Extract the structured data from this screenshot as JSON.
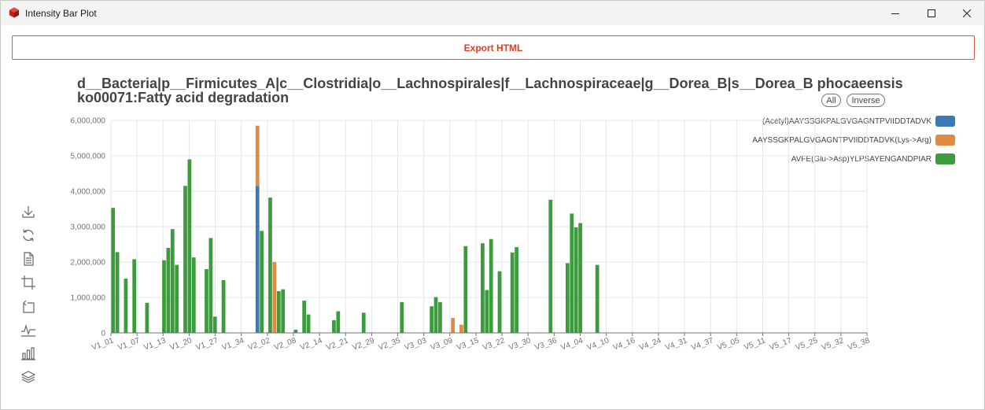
{
  "window": {
    "title": "Intensity Bar Plot",
    "icon": "app-cube-icon",
    "controls": [
      "minimize-icon",
      "maximize-icon",
      "close-icon"
    ]
  },
  "toolbar": {
    "export_label": "Export HTML"
  },
  "chart_header": {
    "line1": "d__Bacteria|p__Firmicutes_A|c__Clostridia|o__Lachnospirales|f__Lachnospiraceae|g__Dorea_B|s__Dorea_B phocaeensis",
    "line2": "ko00071:Fatty acid degradation"
  },
  "legend_controls": {
    "all_label": "All",
    "inverse_label": "Inverse"
  },
  "colors": {
    "series1": "#3a7ab5",
    "series2": "#e28a41",
    "series3": "#3c9b3c",
    "grid": "#e3e6ee",
    "axis_text": "#6e7079"
  },
  "side_tools": [
    "download-icon",
    "refresh-icon",
    "data-view-icon",
    "zoom-icon",
    "zoom-reset-icon",
    "line-chart-icon",
    "bar-chart-icon",
    "stack-icon"
  ],
  "chart_data": {
    "type": "bar",
    "stacked": true,
    "title": "d__Bacteria|p__Firmicutes_A|c__Clostridia|o__Lachnospirales|f__Lachnospiraceae|g__Dorea_B|s__Dorea_B phocaeensis",
    "subtitle": "ko00071:Fatty acid degradation",
    "ylim": [
      0,
      6000000
    ],
    "yticks": [
      "0",
      "1,000,000",
      "2,000,000",
      "3,000,000",
      "4,000,000",
      "5,000,000",
      "6,000,000"
    ],
    "xtick_labels": [
      "V1_01",
      "V1_07",
      "V1_13",
      "V1_20",
      "V1_27",
      "V1_34",
      "V2_02",
      "V2_08",
      "V2_14",
      "V2_21",
      "V2_29",
      "V2_35",
      "V3_03",
      "V3_09",
      "V3_15",
      "V3_22",
      "V3_30",
      "V3_36",
      "V4_04",
      "V4_10",
      "V4_16",
      "V4_24",
      "V4_31",
      "V4_37",
      "V5_05",
      "V5_11",
      "V5_17",
      "V5_25",
      "V5_32",
      "V5_38"
    ],
    "grid": true,
    "legend_position": "top-right",
    "series": [
      {
        "name": "(Acetyl)AAYSSGKPALGVGAGNTPVIIDDTADVK",
        "values": [
          0,
          0,
          0,
          0,
          0,
          0,
          0,
          0,
          0,
          0,
          0,
          0,
          0,
          0,
          0,
          0,
          0,
          0,
          0,
          0,
          0,
          0,
          0,
          0,
          0,
          0,
          0,
          0,
          0,
          0,
          0,
          0,
          0,
          0,
          4150000,
          0,
          0,
          0,
          0,
          0,
          0,
          0,
          0,
          0,
          0,
          0,
          0,
          0,
          0,
          0,
          0,
          0,
          0,
          0,
          0,
          0,
          0,
          0,
          0,
          0,
          0,
          0,
          0,
          0,
          0,
          0,
          0,
          0,
          0,
          0,
          0,
          0,
          0,
          0,
          0,
          0,
          0,
          0,
          0,
          0,
          0,
          0,
          0,
          0,
          0,
          0,
          0,
          0,
          0,
          0,
          0,
          0,
          0,
          0,
          0,
          0,
          0,
          0,
          0,
          0,
          0,
          0,
          0,
          0,
          0,
          0,
          0,
          0,
          0,
          0,
          0,
          0,
          0,
          0,
          0,
          0,
          0,
          0,
          0,
          0,
          0,
          0,
          0,
          0,
          0,
          0,
          0,
          0,
          0,
          0,
          0,
          0,
          0,
          0,
          0,
          0,
          0,
          0,
          0,
          0,
          0,
          0,
          0,
          0,
          0,
          0,
          0,
          0,
          0,
          0,
          0,
          0,
          0,
          0,
          0,
          0,
          0,
          0,
          0,
          0,
          0,
          0,
          0,
          0,
          0,
          0,
          0,
          0,
          0,
          0,
          0,
          0,
          0,
          0,
          0,
          0,
          0,
          0
        ]
      },
      {
        "name": "AAYSSGKPALGVGAGNTPVIIDDTADVK(Lys->Arg)",
        "values": [
          0,
          0,
          0,
          0,
          0,
          0,
          0,
          0,
          0,
          0,
          0,
          0,
          0,
          0,
          0,
          0,
          0,
          0,
          0,
          0,
          0,
          0,
          0,
          0,
          0,
          0,
          0,
          0,
          0,
          0,
          0,
          0,
          0,
          0,
          1700000,
          0,
          0,
          0,
          2000000,
          0,
          0,
          0,
          0,
          0,
          0,
          0,
          0,
          0,
          0,
          0,
          0,
          0,
          0,
          0,
          0,
          0,
          0,
          0,
          0,
          0,
          0,
          0,
          0,
          0,
          0,
          0,
          0,
          0,
          0,
          0,
          0,
          0,
          0,
          0,
          0,
          0,
          0,
          0,
          0,
          0,
          420000,
          0,
          230000,
          0,
          0,
          0,
          0,
          0,
          0,
          0,
          0,
          0,
          0,
          0,
          0,
          0,
          0,
          0,
          0,
          0,
          0,
          0,
          0,
          0,
          0,
          0,
          0,
          0,
          0,
          0,
          0,
          0,
          0,
          0,
          0,
          0,
          0,
          0,
          0,
          0,
          0,
          0,
          0,
          0,
          0,
          0,
          0,
          0,
          0,
          0,
          0,
          0,
          0,
          0,
          0,
          0,
          0,
          0,
          0,
          0,
          0,
          0,
          0,
          0,
          0,
          0,
          0,
          0,
          0,
          0,
          0,
          0,
          0,
          0,
          0,
          0,
          0,
          0,
          0,
          0,
          0,
          0,
          0,
          0,
          0,
          0,
          0,
          0,
          0,
          0,
          0,
          0,
          0,
          0,
          0,
          0,
          0,
          0,
          0,
          0,
          0,
          0
        ]
      },
      {
        "name": "AVFE(Glu->Asp)YLPSAYENGANDPIAR",
        "values": [
          3530000,
          2280000,
          0,
          1530000,
          0,
          2080000,
          0,
          0,
          850000,
          0,
          0,
          0,
          2050000,
          2400000,
          2930000,
          1920000,
          0,
          4150000,
          4900000,
          2130000,
          0,
          0,
          1800000,
          2680000,
          460000,
          0,
          1490000,
          0,
          0,
          0,
          0,
          0,
          0,
          0,
          0,
          2880000,
          0,
          3820000,
          0,
          1180000,
          1230000,
          0,
          0,
          90000,
          0,
          910000,
          520000,
          0,
          0,
          0,
          0,
          0,
          360000,
          610000,
          0,
          0,
          0,
          0,
          0,
          570000,
          0,
          0,
          0,
          0,
          0,
          0,
          0,
          0,
          870000,
          0,
          0,
          0,
          0,
          0,
          0,
          750000,
          1010000,
          870000,
          0,
          0,
          0,
          0,
          0,
          2450000,
          0,
          0,
          0,
          2530000,
          1210000,
          2650000,
          0,
          1740000,
          0,
          0,
          2270000,
          2420000,
          0,
          0,
          0,
          0,
          0,
          0,
          0,
          3760000,
          0,
          0,
          0,
          1970000,
          3370000,
          2980000,
          3100000,
          0,
          0,
          0,
          1920000,
          0,
          0,
          0,
          0,
          0,
          0,
          0,
          0,
          0,
          0,
          0,
          0,
          0,
          0,
          0,
          0,
          0,
          0,
          0,
          0,
          0,
          0,
          0,
          0,
          0,
          0,
          0,
          0,
          0,
          0,
          0,
          0,
          0,
          0,
          0,
          0,
          0,
          0,
          0,
          0,
          0,
          0,
          0,
          0,
          0,
          0,
          0,
          0,
          0,
          0,
          0,
          0,
          0,
          0,
          0,
          0,
          0,
          0,
          0,
          0,
          0,
          0,
          0,
          0,
          0,
          0,
          0,
          0,
          0,
          0,
          0,
          0,
          380000,
          0,
          0,
          0,
          0,
          0,
          0
        ]
      }
    ]
  }
}
